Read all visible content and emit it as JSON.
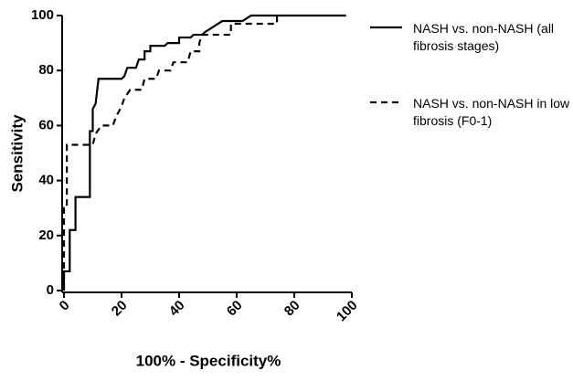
{
  "chart_data": {
    "type": "line",
    "x_label": "100% - Specificity%",
    "y_label": "Sensitivity",
    "xlim": [
      0,
      100
    ],
    "xticks": [
      0,
      20,
      40,
      60,
      80,
      100
    ],
    "ylim": [
      0,
      100
    ],
    "yticks": [
      0,
      20,
      40,
      60,
      80,
      100
    ],
    "series": [
      {
        "name": "NASH vs. non-NASH (all fibrosis stages)",
        "color": "#000000",
        "dash": "solid",
        "x": [
          0,
          0,
          2,
          2,
          4,
          4,
          9,
          9,
          10,
          10,
          11,
          12,
          20,
          21,
          22,
          25,
          26,
          28,
          28,
          30,
          30,
          35,
          36,
          40,
          40,
          44,
          45,
          48,
          49,
          52,
          55,
          62,
          65,
          98
        ],
        "values": [
          0,
          7,
          7,
          22,
          22,
          34,
          34,
          58,
          58,
          66,
          68,
          77,
          77,
          78,
          81,
          81,
          84,
          84,
          87,
          87,
          89,
          89,
          90,
          90,
          92,
          92,
          93,
          93,
          94,
          96,
          98,
          98,
          100,
          100
        ]
      },
      {
        "name": "NASH vs. non-NASH in low fibrosis (F0-1)",
        "color": "#000000",
        "dash": "dashed",
        "x": [
          0,
          0,
          1,
          1,
          10,
          11,
          13,
          17,
          18,
          20,
          21,
          23,
          27,
          28,
          32,
          33,
          37,
          38,
          43,
          44,
          47,
          47,
          48,
          58,
          58,
          74,
          74
        ],
        "values": [
          0,
          30,
          30,
          53,
          53,
          57,
          60,
          60,
          63,
          67,
          70,
          73,
          73,
          77,
          77,
          80,
          80,
          83,
          83,
          87,
          87,
          90,
          93,
          93,
          97,
          97,
          100
        ]
      }
    ]
  }
}
